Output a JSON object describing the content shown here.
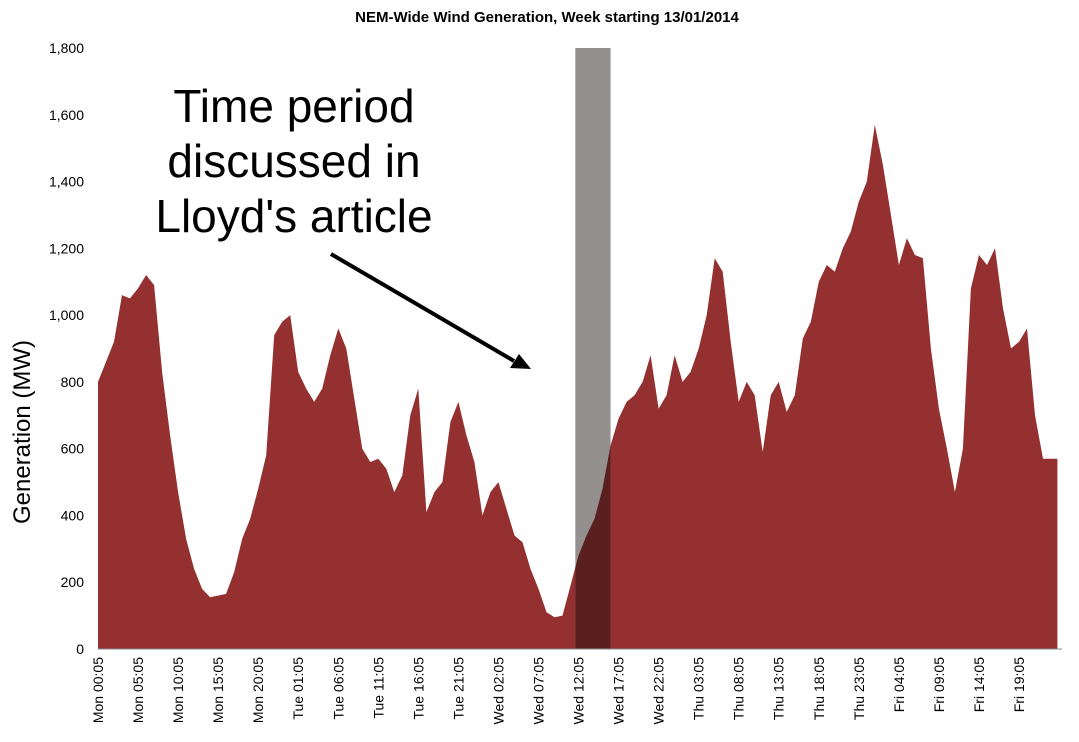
{
  "chart_data": {
    "type": "area",
    "title": "NEM-Wide Wind Generation, Week starting 13/01/2014",
    "ylabel": "Generation (MW)",
    "xlabel": "",
    "ylim": [
      0,
      1800
    ],
    "yticks": [
      "0",
      "200",
      "400",
      "600",
      "800",
      "1,000",
      "1,200",
      "1,400",
      "1,600",
      "1,800"
    ],
    "ytick_values": [
      0,
      200,
      400,
      600,
      800,
      1000,
      1200,
      1400,
      1600,
      1800
    ],
    "x_range_hours": [
      0,
      115
    ],
    "xtick_labels": [
      "Mon 00:05",
      "Mon 05:05",
      "Mon 10:05",
      "Mon 15:05",
      "Mon 20:05",
      "Tue 01:05",
      "Tue 06:05",
      "Tue 11:05",
      "Tue 16:05",
      "Tue 21:05",
      "Wed 02:05",
      "Wed 07:05",
      "Wed 12:05",
      "Wed 17:05",
      "Wed 22:05",
      "Thu 03:05",
      "Thu 08:05",
      "Thu 13:05",
      "Thu 18:05",
      "Thu 23:05",
      "Fri 04:05",
      "Fri 09:05",
      "Fri 14:05",
      "Fri 19:05"
    ],
    "xtick_hours": [
      0,
      5,
      10,
      15,
      20,
      25,
      30,
      35,
      40,
      45,
      50,
      55,
      60,
      65,
      70,
      75,
      80,
      85,
      90,
      95,
      100,
      105,
      110,
      115
    ],
    "series": [
      {
        "color": "#943030",
        "x": [
          0,
          1,
          2,
          3,
          4,
          5,
          6,
          7,
          8,
          9,
          10,
          11,
          12,
          13,
          14,
          15,
          16,
          17,
          18,
          19,
          20,
          21,
          22,
          23,
          24,
          25,
          26,
          27,
          28,
          29,
          30,
          31,
          32,
          33,
          34,
          35,
          36,
          37,
          38,
          39,
          40,
          41,
          42,
          43,
          44,
          45,
          46,
          47,
          48,
          49,
          50,
          51,
          52,
          53,
          54,
          55,
          56,
          57,
          58,
          59,
          60,
          61,
          62,
          63,
          64,
          65,
          66,
          67,
          68,
          69,
          70,
          71,
          72,
          73,
          74,
          75,
          76,
          77,
          78,
          79,
          80,
          81,
          82,
          83,
          84,
          85,
          86,
          87,
          88,
          89,
          90,
          91,
          92,
          93,
          94,
          95,
          96,
          97,
          98,
          99,
          100,
          101,
          102,
          103,
          104,
          105,
          106,
          107,
          108,
          109,
          110,
          111,
          112,
          113,
          114,
          115,
          116,
          117,
          118,
          119,
          119.8
        ],
        "y": [
          800,
          860,
          920,
          1060,
          1050,
          1080,
          1120,
          1090,
          830,
          640,
          470,
          330,
          240,
          180,
          155,
          160,
          165,
          230,
          330,
          390,
          480,
          580,
          940,
          980,
          1000,
          830,
          780,
          740,
          780,
          880,
          960,
          900,
          750,
          600,
          560,
          570,
          540,
          470,
          520,
          700,
          780,
          410,
          470,
          500,
          680,
          740,
          640,
          560,
          400,
          470,
          500,
          420,
          340,
          320,
          240,
          180,
          110,
          95,
          100,
          190,
          280,
          340,
          390,
          480,
          610,
          690,
          740,
          760,
          800,
          880,
          720,
          760,
          880,
          800,
          830,
          900,
          1000,
          1170,
          1130,
          920,
          740,
          800,
          760,
          590,
          760,
          800,
          710,
          760,
          930,
          980,
          1100,
          1150,
          1130,
          1200,
          1250,
          1340,
          1400,
          1570,
          1450,
          1300,
          1150,
          1230,
          1180,
          1170,
          900,
          720,
          600,
          470,
          600,
          1080,
          1180,
          1150,
          1200,
          1020,
          900,
          920,
          960,
          700,
          570,
          570,
          570
        ]
      }
    ],
    "annotation": {
      "text_lines": [
        "Time period",
        "discussed in",
        "Lloyd's article"
      ],
      "highlight_hours": [
        59.6,
        64.0
      ],
      "highlight_color": "#949090"
    }
  }
}
